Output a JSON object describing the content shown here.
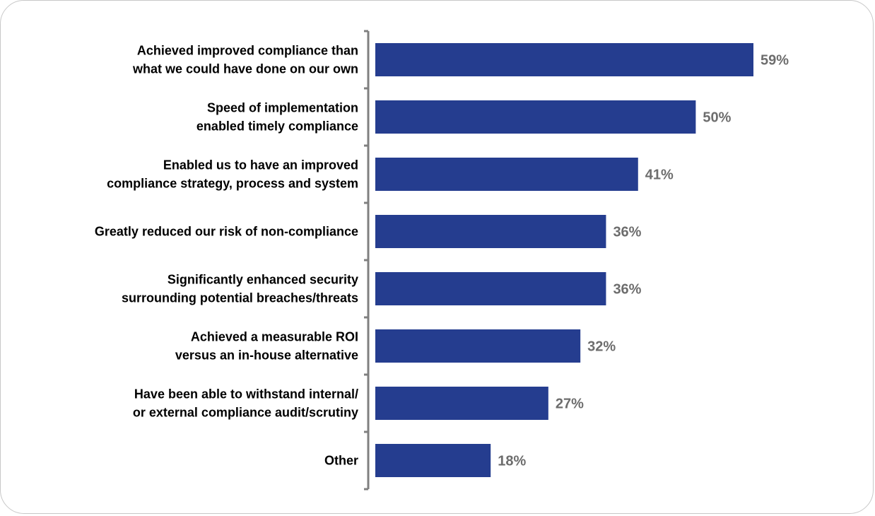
{
  "chart_data": {
    "type": "bar",
    "orientation": "horizontal",
    "categories": [
      [
        "Achieved improved compliance than",
        "what we could have done on our own"
      ],
      [
        "Speed of implementation",
        "enabled timely compliance"
      ],
      [
        "Enabled us to have an improved",
        "compliance strategy, process and system"
      ],
      [
        "Greatly reduced our risk of non-compliance"
      ],
      [
        "Significantly enhanced security",
        "surrounding potential breaches/threats"
      ],
      [
        "Achieved a measurable ROI",
        "versus an in-house alternative"
      ],
      [
        "Have been able to withstand internal/",
        "or external compliance audit/scrutiny"
      ],
      [
        "Other"
      ]
    ],
    "values": [
      59,
      50,
      41,
      36,
      36,
      32,
      27,
      18
    ],
    "value_labels": [
      "59%",
      "50%",
      "41%",
      "36%",
      "36%",
      "32%",
      "27%",
      "18%"
    ],
    "title": "",
    "xlabel": "",
    "ylabel": "",
    "xlim": [
      0,
      59
    ],
    "grid": false,
    "legend": "none",
    "colors": {
      "bar": "#253d8f",
      "value_label": "#6d6d6d",
      "axis": "#808080"
    }
  }
}
